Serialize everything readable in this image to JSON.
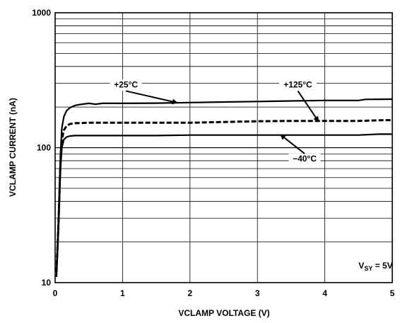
{
  "chart_data": {
    "type": "line",
    "title": "",
    "xlabel": "VCLAMP VOLTAGE (V)",
    "ylabel": "VCLAMP CURRENT (nA)",
    "xlim": [
      0,
      5
    ],
    "ylim": [
      10,
      1000
    ],
    "yscale": "log",
    "grid": true,
    "x_ticks": [
      0,
      1,
      2,
      3,
      4,
      5
    ],
    "x_tick_labels": [
      "0",
      "1",
      "2",
      "3",
      "4",
      "5"
    ],
    "y_tick_labels": [
      {
        "value": 10,
        "label": "10"
      },
      {
        "value": 100,
        "label": "100"
      },
      {
        "value": 1000,
        "label": "1000"
      }
    ],
    "series": [
      {
        "name": "+25°C",
        "style": "solid",
        "x": [
          0.02,
          0.05,
          0.08,
          0.1,
          0.13,
          0.17,
          0.22,
          0.3,
          0.4,
          0.5,
          0.6,
          0.7,
          1.0,
          1.5,
          2.0,
          2.5,
          3.0,
          3.5,
          4.0,
          4.5,
          4.6,
          5.0
        ],
        "y": [
          12,
          30,
          90,
          140,
          170,
          188,
          198,
          206,
          210,
          213,
          210,
          213,
          213,
          214,
          216,
          218,
          220,
          222,
          224,
          224,
          228,
          229
        ]
      },
      {
        "name": "+125°C",
        "style": "dashed",
        "x": [
          0.02,
          0.05,
          0.08,
          0.1,
          0.13,
          0.17,
          0.22,
          0.3,
          0.5,
          1.0,
          1.5,
          2.0,
          2.5,
          3.0,
          3.5,
          4.0,
          4.5,
          4.9,
          5.0
        ],
        "y": [
          12,
          28,
          80,
          115,
          135,
          145,
          150,
          152,
          153,
          153,
          153,
          153,
          155,
          157,
          158,
          158,
          158,
          160,
          160
        ]
      },
      {
        "name": "−40°C",
        "style": "solid",
        "x": [
          0.02,
          0.05,
          0.08,
          0.1,
          0.13,
          0.17,
          0.22,
          0.3,
          0.5,
          1.0,
          1.5,
          2.0,
          2.5,
          3.0,
          3.5,
          4.0,
          4.5,
          4.8,
          5.0
        ],
        "y": [
          11,
          25,
          70,
          100,
          115,
          120,
          122,
          123,
          123,
          123,
          123,
          124,
          124,
          124,
          124,
          124,
          124,
          126,
          126
        ]
      }
    ],
    "annotations": [
      {
        "text": "+25°C",
        "label_x": 1.05,
        "label_y": 290,
        "point_x": 1.8,
        "point_y": 216
      },
      {
        "text": "+125°C",
        "label_x": 3.6,
        "label_y": 290,
        "point_x": 3.9,
        "point_y": 158
      },
      {
        "text": "−40°C",
        "label_x": 3.7,
        "label_y": 82,
        "point_x": 3.35,
        "point_y": 124
      },
      {
        "text": "V",
        "sub": "SY",
        "after": " = 5V",
        "label_x": 4.5,
        "label_y": 13.2
      }
    ]
  }
}
